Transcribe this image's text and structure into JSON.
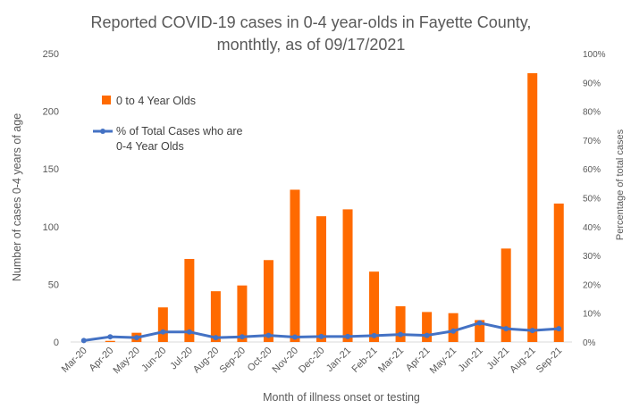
{
  "chart_data": {
    "type": "bar",
    "title_line1": "Reported COVID-19 cases in 0-4 year-olds in Fayette County,",
    "title_line2": "monthtly, as of 09/17/2021",
    "xlabel": "Month of illness onset or testing",
    "ylabel": "Number of cases 0-4 years of age",
    "y2label": "Percentage of total cases",
    "categories": [
      "Mar-20",
      "Apr-20",
      "May-20",
      "Jun-20",
      "Jul-20",
      "Aug-20",
      "Sep-20",
      "Oct-20",
      "Nov-20",
      "Dec-20",
      "Jan-21",
      "Feb-21",
      "Mar-21",
      "Apr-21",
      "May-21",
      "Jun-21",
      "Jul-21",
      "Aug-21",
      "Sep-21"
    ],
    "ylim": [
      0,
      250
    ],
    "yticks": [
      "0",
      "50",
      "100",
      "150",
      "200",
      "250"
    ],
    "y2lim": [
      0,
      100
    ],
    "y2ticks": [
      "0%",
      "10%",
      "20%",
      "30%",
      "40%",
      "50%",
      "60%",
      "70%",
      "80%",
      "90%",
      "100%"
    ],
    "legend_position": "top-left",
    "series": [
      {
        "name": "0 to 4 Year Olds",
        "type": "bar",
        "axis": "left",
        "color": "#FF6A00",
        "values": [
          0,
          1,
          8,
          30,
          72,
          44,
          49,
          71,
          132,
          109,
          115,
          61,
          31,
          26,
          25,
          19,
          81,
          233,
          120
        ]
      },
      {
        "name_line1": "% of Total Cases who are",
        "name_line2": "0-4 Year Olds",
        "type": "line",
        "axis": "right",
        "color": "#4472C4",
        "values": [
          0.5,
          1.8,
          1.5,
          3.5,
          3.5,
          1.5,
          1.8,
          2.3,
          1.7,
          1.9,
          1.9,
          2.2,
          2.6,
          2.3,
          3.8,
          6.6,
          4.6,
          4.0,
          4.6
        ]
      }
    ]
  }
}
